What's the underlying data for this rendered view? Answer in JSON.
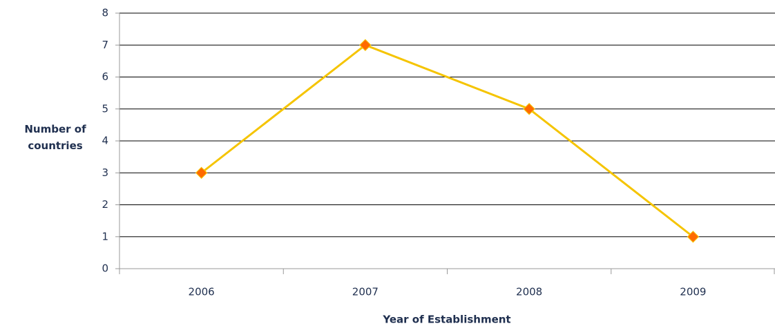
{
  "chart_data": {
    "type": "line",
    "categories": [
      "2006",
      "2007",
      "2008",
      "2009"
    ],
    "series": [
      {
        "name": "Number of countries",
        "color": "#f5c400",
        "marker_color": "#ff6a00",
        "values": [
          3,
          7,
          5,
          1
        ]
      }
    ],
    "ylim": [
      0,
      8
    ],
    "yticks": [
      0,
      1,
      2,
      3,
      4,
      5,
      6,
      7,
      8
    ],
    "grid": true,
    "y_label": "Number of countries",
    "x_label": "Year of Establishment"
  }
}
